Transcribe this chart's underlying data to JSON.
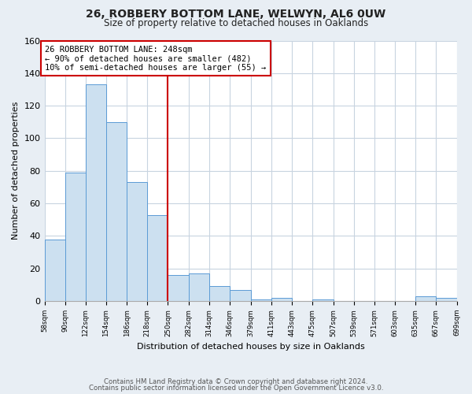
{
  "title": "26, ROBBERY BOTTOM LANE, WELWYN, AL6 0UW",
  "subtitle": "Size of property relative to detached houses in Oaklands",
  "xlabel": "Distribution of detached houses by size in Oaklands",
  "ylabel": "Number of detached properties",
  "bar_edges": [
    58,
    90,
    122,
    154,
    186,
    218,
    250,
    282,
    314,
    346,
    379,
    411,
    443,
    475,
    507,
    539,
    571,
    603,
    635,
    667,
    699
  ],
  "bar_heights": [
    38,
    79,
    133,
    110,
    73,
    53,
    16,
    17,
    9,
    7,
    1,
    2,
    0,
    1,
    0,
    0,
    0,
    0,
    3,
    2
  ],
  "bar_color": "#cce0f0",
  "bar_edge_color": "#5b9bd5",
  "vline_x": 250,
  "vline_color": "#cc0000",
  "annotation_title": "26 ROBBERY BOTTOM LANE: 248sqm",
  "annotation_line1": "← 90% of detached houses are smaller (482)",
  "annotation_line2": "10% of semi-detached houses are larger (55) →",
  "annotation_box_color": "#cc0000",
  "ylim": [
    0,
    160
  ],
  "yticks": [
    0,
    20,
    40,
    60,
    80,
    100,
    120,
    140,
    160
  ],
  "tick_labels": [
    "58sqm",
    "90sqm",
    "122sqm",
    "154sqm",
    "186sqm",
    "218sqm",
    "250sqm",
    "282sqm",
    "314sqm",
    "346sqm",
    "379sqm",
    "411sqm",
    "443sqm",
    "475sqm",
    "507sqm",
    "539sqm",
    "571sqm",
    "603sqm",
    "635sqm",
    "667sqm",
    "699sqm"
  ],
  "footnote1": "Contains HM Land Registry data © Crown copyright and database right 2024.",
  "footnote2": "Contains public sector information licensed under the Open Government Licence v3.0.",
  "bg_color": "#e8eef4",
  "plot_bg_color": "#ffffff",
  "grid_color": "#c8d4e0"
}
